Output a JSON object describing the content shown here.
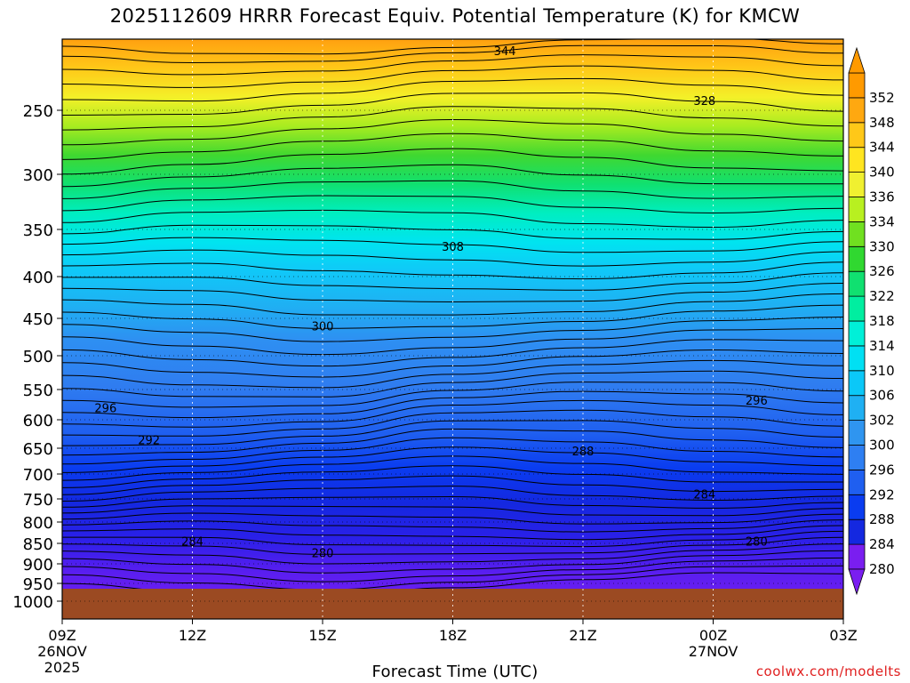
{
  "chart_data": {
    "type": "heatmap",
    "title": "2025112609 HRRR Forecast Equiv. Potential Temperature (K) for KMCW",
    "xlabel": "Forecast Time (UTC)",
    "ylabel": "",
    "x_ticks": [
      "09Z",
      "12Z",
      "15Z",
      "18Z",
      "21Z",
      "00Z",
      "03Z"
    ],
    "x_tick_hours": [
      0,
      3,
      6,
      9,
      12,
      15,
      18
    ],
    "x_sub_labels": [
      {
        "hour": 0,
        "lines": [
          "26NOV",
          "2025"
        ]
      },
      {
        "hour": 15,
        "lines": [
          "27NOV"
        ]
      }
    ],
    "y_ticks": [
      250,
      300,
      350,
      400,
      450,
      500,
      550,
      600,
      650,
      700,
      750,
      800,
      850,
      900,
      950,
      1000
    ],
    "ylim_hpa": [
      1000,
      200
    ],
    "colorbar_labels": [
      280,
      284,
      288,
      292,
      296,
      300,
      302,
      306,
      310,
      314,
      318,
      322,
      326,
      330,
      334,
      336,
      340,
      344,
      348,
      352
    ],
    "colorbar_colors": [
      "#7a1ef0",
      "#1428e0",
      "#0a3cf0",
      "#1f5ff0",
      "#2e7ff2",
      "#2f95f0",
      "#1fb0f3",
      "#0bc8f8",
      "#00e0f3",
      "#00f0d8",
      "#00eea0",
      "#10e070",
      "#30d830",
      "#70e020",
      "#b8f020",
      "#f0f030",
      "#ffe520",
      "#ffc818",
      "#ffa810",
      "#ff9a00"
    ],
    "background_color": "#ffffff",
    "ground_color": "#9b4a22",
    "contour_labels": [
      {
        "value": "344",
        "hour": 10.2,
        "hpa": 208
      },
      {
        "value": "328",
        "hour": 14.8,
        "hpa": 243
      },
      {
        "value": "308",
        "hour": 9.0,
        "hpa": 368
      },
      {
        "value": "300",
        "hour": 6.0,
        "hpa": 460
      },
      {
        "value": "296",
        "hour": 1.0,
        "hpa": 580
      },
      {
        "value": "296",
        "hour": 16.0,
        "hpa": 568
      },
      {
        "value": "292",
        "hour": 2.0,
        "hpa": 635
      },
      {
        "value": "288",
        "hour": 12.0,
        "hpa": 655
      },
      {
        "value": "284",
        "hour": 3.0,
        "hpa": 845
      },
      {
        "value": "284",
        "hour": 14.8,
        "hpa": 740
      },
      {
        "value": "280",
        "hour": 6.0,
        "hpa": 873
      },
      {
        "value": "280",
        "hour": 16.0,
        "hpa": 845
      }
    ],
    "grid": true,
    "legend_placement": "right"
  },
  "credit": "coolwx.com/modelts"
}
